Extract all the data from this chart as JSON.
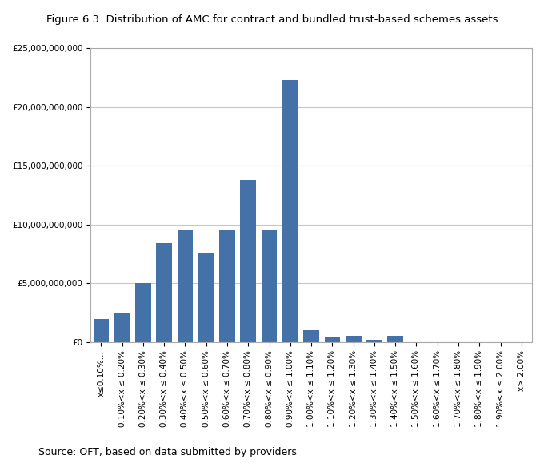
{
  "title": "Figure 6.3: Distribution of AMC for contract and bundled trust-based schemes assets",
  "source": "Source: OFT, based on data submitted by providers",
  "categories": [
    "x≤0.10%...",
    "0.10%<x ≤ 0.20%",
    "0.20%<x ≤ 0.30%",
    "0.30%<x ≤ 0.40%",
    "0.40%<x ≤ 0.50%",
    "0.50%<x ≤ 0.60%",
    "0.60%<x ≤ 0.70%",
    "0.70%<x ≤ 0.80%",
    "0.80%<x ≤ 0.90%",
    "0.90%<x ≤ 1.00%",
    "1.00%<x ≤ 1.10%",
    "1.10%<x ≤ 1.20%",
    "1.20%<x ≤ 1.30%",
    "1.30%<x ≤ 1.40%",
    "1.40%<x ≤ 1.50%",
    "1.50%<x ≤ 1.60%",
    "1.60%<x ≤ 1.70%",
    "1.70%<x ≤ 1.80%",
    "1.80%<x ≤ 1.90%",
    "1.90%<x ≤ 2.00%",
    "x> 2.00%"
  ],
  "values": [
    2000000000,
    2500000000,
    5000000000,
    8400000000,
    9600000000,
    7600000000,
    9600000000,
    13800000000,
    9500000000,
    22300000000,
    1000000000,
    500000000,
    550000000,
    200000000,
    550000000,
    0,
    0,
    0,
    0,
    0,
    0
  ],
  "bar_color": "#4472A8",
  "ylim": [
    0,
    25000000000
  ],
  "yticks": [
    0,
    5000000000,
    10000000000,
    15000000000,
    20000000000,
    25000000000
  ],
  "ytick_labels": [
    "£0",
    "£5,000,000,000",
    "£10,000,000,000",
    "£15,000,000,000",
    "£20,000,000,000",
    "£25,000,000,000"
  ],
  "bg_color": "#ffffff",
  "plot_bg_color": "#ffffff",
  "grid_color": "#c8c8c8",
  "title_fontsize": 9.5,
  "tick_fontsize": 7.5,
  "source_fontsize": 9
}
